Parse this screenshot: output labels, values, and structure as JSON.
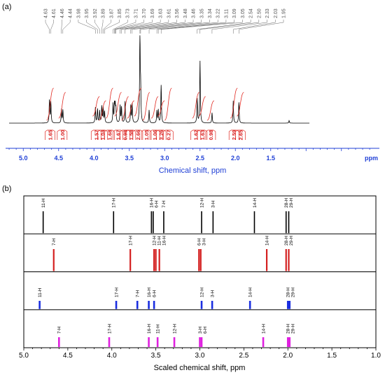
{
  "panels": {
    "a": "(a)",
    "b": "(b)"
  },
  "chart_data": [
    {
      "type": "line",
      "panel": "(a)",
      "xlabel": "Chemical shift, ppm",
      "xunit": "ppm",
      "xlim": [
        5.25,
        0.0
      ],
      "xticks": [
        "5.0",
        "4.5",
        "4.0",
        "3.5",
        "3.0",
        "2.5",
        "2.0",
        "1.5"
      ],
      "peak_labels": [
        "4.63",
        "4.61",
        "4.46",
        "4.44",
        "3.98",
        "3.95",
        "3.92",
        "3.89",
        "3.87",
        "3.85",
        "3.73",
        "3.71",
        "3.70",
        "3.69",
        "3.63",
        "3.61",
        "3.56",
        "3.48",
        "3.46",
        "3.35",
        "3.34",
        "3.22",
        "3.11",
        "3.09",
        "3.05",
        "2.54",
        "2.50",
        "2.33",
        "2.03",
        "1.95"
      ],
      "integrals": [
        {
          "label": "1.65",
          "x": 4.62
        },
        {
          "label": "1.00",
          "x": 4.45
        },
        {
          "label": "1.57",
          "x": 3.97
        },
        {
          "label": "1.04",
          "x": 3.88
        },
        {
          "label": "1.68",
          "x": 3.78
        },
        {
          "label": "1.67",
          "x": 3.66
        },
        {
          "label": "0.98",
          "x": 3.56
        },
        {
          "label": "1.58",
          "x": 3.48
        },
        {
          "label": "2.66",
          "x": 3.38
        },
        {
          "label": "1.05",
          "x": 3.26
        },
        {
          "label": "1.06",
          "x": 3.14
        },
        {
          "label": "3.26",
          "x": 3.05
        },
        {
          "label": "0.27",
          "x": 2.95
        },
        {
          "label": "1.62",
          "x": 2.56
        },
        {
          "label": "1.63",
          "x": 2.47
        },
        {
          "label": "0.98",
          "x": 2.35
        },
        {
          "label": "2.59",
          "x": 2.02
        },
        {
          "label": "2.65",
          "x": 1.93
        }
      ],
      "spectrum_peaks": [
        {
          "x": 4.63,
          "h": 0.26
        },
        {
          "x": 4.61,
          "h": 0.24
        },
        {
          "x": 4.46,
          "h": 0.16
        },
        {
          "x": 4.44,
          "h": 0.15
        },
        {
          "x": 3.98,
          "h": 0.18
        },
        {
          "x": 3.95,
          "h": 0.16
        },
        {
          "x": 3.92,
          "h": 0.14
        },
        {
          "x": 3.89,
          "h": 0.19
        },
        {
          "x": 3.87,
          "h": 0.17
        },
        {
          "x": 3.85,
          "h": 0.13
        },
        {
          "x": 3.73,
          "h": 0.22
        },
        {
          "x": 3.71,
          "h": 0.2
        },
        {
          "x": 3.7,
          "h": 0.18
        },
        {
          "x": 3.69,
          "h": 0.16
        },
        {
          "x": 3.63,
          "h": 0.2
        },
        {
          "x": 3.61,
          "h": 0.18
        },
        {
          "x": 3.56,
          "h": 0.25
        },
        {
          "x": 3.48,
          "h": 0.2
        },
        {
          "x": 3.46,
          "h": 0.22
        },
        {
          "x": 3.35,
          "h": 1.0
        },
        {
          "x": 3.34,
          "h": 0.36
        },
        {
          "x": 3.22,
          "h": 0.15
        },
        {
          "x": 3.11,
          "h": 0.14
        },
        {
          "x": 3.09,
          "h": 0.15
        },
        {
          "x": 3.05,
          "h": 0.44
        },
        {
          "x": 2.54,
          "h": 0.28
        },
        {
          "x": 2.5,
          "h": 0.72
        },
        {
          "x": 2.33,
          "h": 0.12
        },
        {
          "x": 2.03,
          "h": 0.26
        },
        {
          "x": 1.95,
          "h": 0.24
        },
        {
          "x": 1.24,
          "h": 0.03
        }
      ]
    },
    {
      "type": "bar",
      "panel": "(b)",
      "xlabel": "Scaled chemical shift, ppm",
      "xlim": [
        5.0,
        1.0
      ],
      "xticks": [
        "5.0",
        "4.5",
        "4.0",
        "3.5",
        "3.0",
        "2.5",
        "2.0",
        "1.5",
        "1.0"
      ],
      "series": [
        {
          "color": "#000000",
          "lines": [
            {
              "label": "11-H",
              "x": 4.78
            },
            {
              "label": "17-H",
              "x": 3.98
            },
            {
              "label": "16-H",
              "x": 3.55
            },
            {
              "label": "6-H",
              "x": 3.53
            },
            {
              "label": "7-H",
              "x": 3.41
            },
            {
              "label": "12-H",
              "x": 2.98
            },
            {
              "label": "3-H",
              "x": 2.85
            },
            {
              "label": "14-H",
              "x": 2.38
            },
            {
              "label": "28-H",
              "x": 2.02
            },
            {
              "label": "29-H",
              "x": 1.99
            }
          ]
        },
        {
          "color": "#d42020",
          "lines": [
            {
              "label": "7-H",
              "x": 4.66
            },
            {
              "label": "17-H",
              "x": 3.79
            },
            {
              "label": "12-H",
              "x": 3.52
            },
            {
              "label": "11-H",
              "x": 3.5
            },
            {
              "label": "16-H",
              "x": 3.46
            },
            {
              "label": "6-H",
              "x": 3.01
            },
            {
              "label": "3-H",
              "x": 2.99
            },
            {
              "label": "14-H",
              "x": 2.24
            },
            {
              "label": "28-H",
              "x": 2.02
            },
            {
              "label": "29-H",
              "x": 1.99
            }
          ]
        },
        {
          "color": "#1a2ee0",
          "lines": [
            {
              "label": "11-H",
              "x": 4.82
            },
            {
              "label": "17-H",
              "x": 3.95
            },
            {
              "label": "7-H",
              "x": 3.71
            },
            {
              "label": "16-H",
              "x": 3.58
            },
            {
              "label": "6-H",
              "x": 3.52
            },
            {
              "label": "12-H",
              "x": 2.98
            },
            {
              "label": "3-H",
              "x": 2.86
            },
            {
              "label": "14-H",
              "x": 2.43
            },
            {
              "label": "28-H",
              "x": 2.0
            },
            {
              "label": "29-H",
              "x": 1.98
            }
          ]
        },
        {
          "color": "#e020e0",
          "lines": [
            {
              "label": "7-H",
              "x": 4.6
            },
            {
              "label": "17-H",
              "x": 4.03
            },
            {
              "label": "16-H",
              "x": 3.58
            },
            {
              "label": "11-H",
              "x": 3.48
            },
            {
              "label": "12-H",
              "x": 3.29
            },
            {
              "label": "3-H",
              "x": 3.0
            },
            {
              "label": "6-H",
              "x": 2.98
            },
            {
              "label": "14-H",
              "x": 2.28
            },
            {
              "label": "28-H",
              "x": 2.0
            },
            {
              "label": "29-H",
              "x": 1.98
            }
          ]
        }
      ]
    }
  ]
}
